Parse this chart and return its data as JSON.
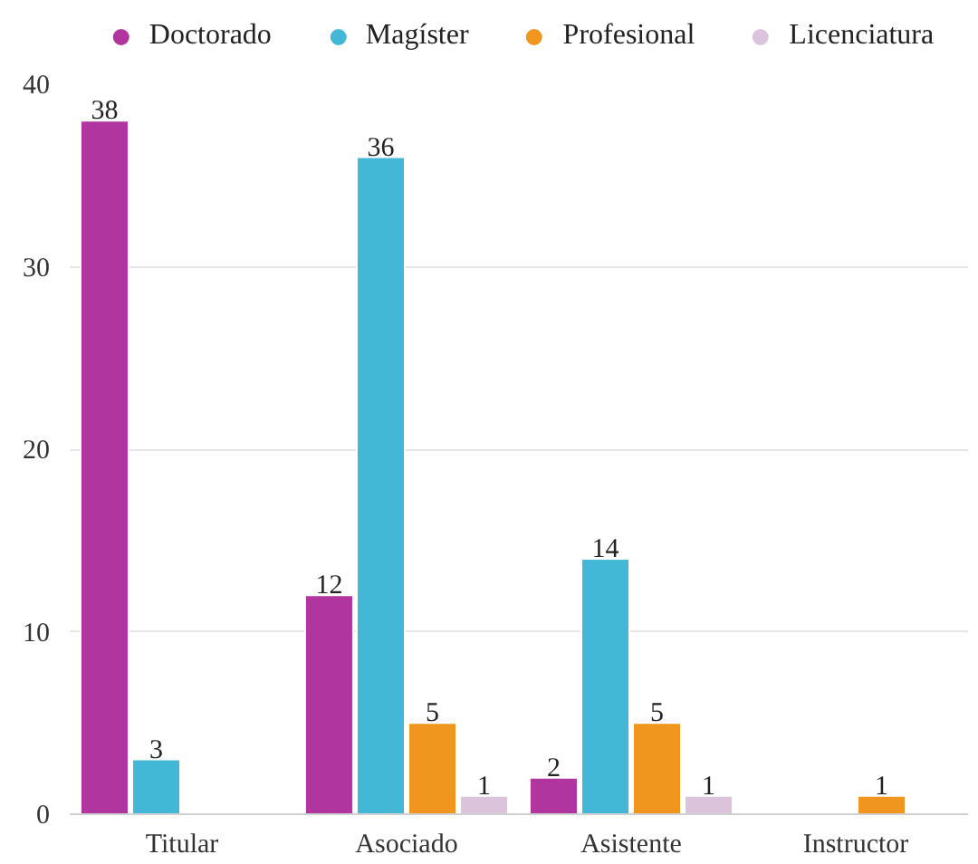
{
  "chart_data": {
    "type": "bar",
    "categories": [
      "Titular",
      "Asociado",
      "Asistente",
      "Instructor"
    ],
    "series": [
      {
        "name": "Doctorado",
        "color": "#b0359e",
        "values": [
          38,
          12,
          2,
          null
        ]
      },
      {
        "name": "Magíster",
        "color": "#42b8d6",
        "values": [
          3,
          36,
          14,
          null
        ]
      },
      {
        "name": "Profesional",
        "color": "#f0961f",
        "values": [
          null,
          5,
          5,
          1
        ]
      },
      {
        "name": "Licenciatura",
        "color": "#dcc3dc",
        "values": [
          null,
          1,
          1,
          null
        ]
      }
    ],
    "ylim": [
      0,
      40
    ],
    "yticks": [
      0,
      10,
      20,
      30,
      40
    ],
    "grid": "y",
    "legend": "top",
    "data_labels": true
  }
}
